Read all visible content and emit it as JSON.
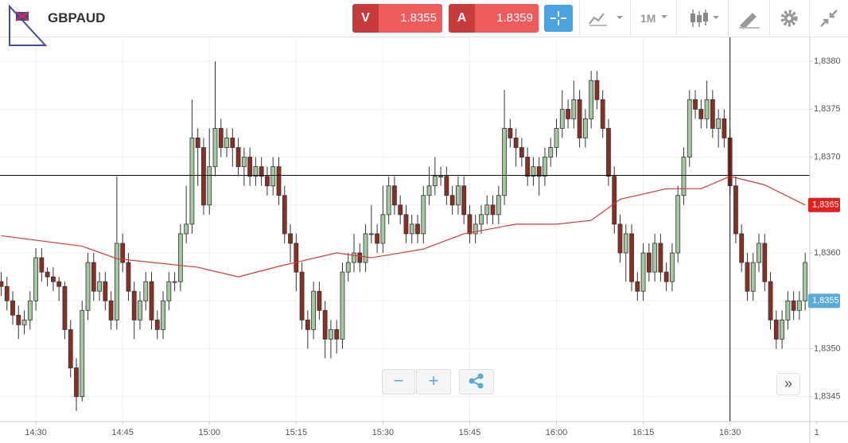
{
  "toolbar": {
    "symbol": "GBPAUD",
    "bid_label": "V",
    "bid": "1.8355",
    "ask_label": "A",
    "ask": "1.8359",
    "timeframe": "1M"
  },
  "chart_data": {
    "type": "candlestick",
    "xlim": [
      -0.2,
      139.8
    ],
    "ylim": [
      1.83424,
      1.83825
    ],
    "xticks": [
      {
        "value": 6,
        "label": "14:30"
      },
      {
        "value": 21,
        "label": "14:45"
      },
      {
        "value": 36,
        "label": "15:00"
      },
      {
        "value": 51,
        "label": "15:15"
      },
      {
        "value": 66,
        "label": "15:30"
      },
      {
        "value": 81,
        "label": "15:45"
      },
      {
        "value": 96,
        "label": "16:00"
      },
      {
        "value": 111,
        "label": "16:15"
      },
      {
        "value": 126,
        "label": "16:30"
      },
      {
        "value": 141,
        "label": "1"
      }
    ],
    "yticks": [
      {
        "value": 1.8345,
        "label": "1,8345"
      },
      {
        "value": 1.835,
        "label": "1,8350"
      },
      {
        "value": 1.8355,
        "label": "1,8355"
      },
      {
        "value": 1.836,
        "label": "1,8360"
      },
      {
        "value": 1.8365,
        "label": "1,8365"
      },
      {
        "value": 1.837,
        "label": "1,8370"
      },
      {
        "value": 1.8375,
        "label": "1,8375"
      },
      {
        "value": 1.838,
        "label": "1,8380"
      }
    ],
    "grid": true,
    "up_color": "#a4c9a0",
    "down_color": "#8e2e22",
    "open": [
      1.8357,
      1.83565,
      1.8355,
      1.83535,
      1.83525,
      1.8353,
      1.8355,
      1.83595,
      1.8358,
      1.83575,
      1.8357,
      1.83565,
      1.8352,
      1.8348,
      1.8345,
      1.8354,
      1.8359,
      1.8356,
      1.8357,
      1.8355,
      1.8353,
      1.8361,
      1.8359,
      1.8356,
      1.8353,
      1.8355,
      1.8357,
      1.8353,
      1.8352,
      1.8355,
      1.8357,
      1.8357,
      1.8362,
      1.8363,
      1.8372,
      1.8371,
      1.8365,
      1.8369,
      1.8373,
      1.8371,
      1.8372,
      1.8371,
      1.8369,
      1.837,
      1.8368,
      1.8369,
      1.8368,
      1.8367,
      1.8369,
      1.8366,
      1.8362,
      1.8361,
      1.8358,
      1.8353,
      1.8352,
      1.8356,
      1.8354,
      1.8351,
      1.8352,
      1.8351,
      1.8358,
      1.8359,
      1.836,
      1.8359,
      1.8362,
      1.8362,
      1.8361,
      1.8364,
      1.8367,
      1.8365,
      1.8364,
      1.8362,
      1.8363,
      1.8362,
      1.8366,
      1.8367,
      1.8368,
      1.8368,
      1.8366,
      1.8365,
      1.8367,
      1.8364,
      1.8362,
      1.8363,
      1.8364,
      1.8365,
      1.8364,
      1.8366,
      1.8373,
      1.8372,
      1.8371,
      1.837,
      1.8368,
      1.8369,
      1.8368,
      1.837,
      1.8371,
      1.8373,
      1.8375,
      1.8374,
      1.8376,
      1.8372,
      1.8374,
      1.8378,
      1.8376,
      1.8373,
      1.8368,
      1.8363,
      1.836,
      1.8362,
      1.8357,
      1.8356,
      1.836,
      1.8358,
      1.8361,
      1.8358,
      1.8357,
      1.836,
      1.8366,
      1.837,
      1.8376,
      1.8375,
      1.8374,
      1.8376,
      1.8373,
      1.8374,
      1.8372,
      1.8367,
      1.8362,
      1.8359,
      1.8356,
      1.8359,
      1.8361,
      1.8357,
      1.8353,
      1.8351,
      1.8353,
      1.8355,
      1.8354,
      1.8355
    ],
    "close": [
      1.83565,
      1.8355,
      1.83535,
      1.83525,
      1.8353,
      1.8355,
      1.83595,
      1.8358,
      1.83575,
      1.8357,
      1.83565,
      1.8352,
      1.8348,
      1.8345,
      1.8354,
      1.8359,
      1.8356,
      1.8357,
      1.8355,
      1.8353,
      1.8361,
      1.8359,
      1.8356,
      1.8353,
      1.8355,
      1.8357,
      1.8353,
      1.8352,
      1.8355,
      1.8357,
      1.8357,
      1.8362,
      1.8363,
      1.8372,
      1.8371,
      1.8365,
      1.8369,
      1.8373,
      1.8371,
      1.8372,
      1.8371,
      1.8369,
      1.837,
      1.8368,
      1.8369,
      1.8368,
      1.8367,
      1.8369,
      1.8366,
      1.8362,
      1.8361,
      1.8358,
      1.8353,
      1.8352,
      1.8356,
      1.8354,
      1.8351,
      1.8352,
      1.8351,
      1.8358,
      1.8359,
      1.836,
      1.8359,
      1.8362,
      1.8362,
      1.8361,
      1.8364,
      1.8367,
      1.8365,
      1.8364,
      1.8362,
      1.8363,
      1.8362,
      1.8366,
      1.8367,
      1.8368,
      1.8368,
      1.8366,
      1.8365,
      1.8367,
      1.8364,
      1.8362,
      1.8363,
      1.8364,
      1.8365,
      1.8364,
      1.8366,
      1.8373,
      1.8372,
      1.8371,
      1.837,
      1.8368,
      1.8369,
      1.8368,
      1.837,
      1.8371,
      1.8373,
      1.8375,
      1.8374,
      1.8376,
      1.8372,
      1.8374,
      1.8378,
      1.8376,
      1.8373,
      1.8368,
      1.8363,
      1.836,
      1.8362,
      1.8357,
      1.8356,
      1.836,
      1.8358,
      1.8361,
      1.8358,
      1.8357,
      1.836,
      1.8366,
      1.837,
      1.8376,
      1.8375,
      1.8374,
      1.8376,
      1.8373,
      1.8374,
      1.8372,
      1.8367,
      1.8362,
      1.8359,
      1.8356,
      1.8359,
      1.8361,
      1.8357,
      1.8353,
      1.8351,
      1.8353,
      1.8355,
      1.8354,
      1.8355,
      1.8359
    ],
    "high": [
      1.8358,
      1.83575,
      1.8356,
      1.83545,
      1.8354,
      1.8356,
      1.83605,
      1.83605,
      1.83585,
      1.83585,
      1.83575,
      1.8357,
      1.8353,
      1.8349,
      1.8355,
      1.836,
      1.836,
      1.8358,
      1.8358,
      1.8356,
      1.8368,
      1.8362,
      1.836,
      1.8357,
      1.8356,
      1.8358,
      1.8358,
      1.8354,
      1.8356,
      1.8358,
      1.8358,
      1.8363,
      1.8367,
      1.8376,
      1.8373,
      1.8372,
      1.8373,
      1.838,
      1.8374,
      1.8373,
      1.8373,
      1.8372,
      1.8371,
      1.8371,
      1.837,
      1.837,
      1.8369,
      1.837,
      1.837,
      1.8367,
      1.8363,
      1.8362,
      1.8359,
      1.8354,
      1.8357,
      1.8357,
      1.8355,
      1.8353,
      1.8353,
      1.8359,
      1.836,
      1.8362,
      1.8361,
      1.8363,
      1.8365,
      1.8363,
      1.8367,
      1.8368,
      1.8368,
      1.8366,
      1.8365,
      1.8364,
      1.8364,
      1.8367,
      1.8369,
      1.837,
      1.8369,
      1.8369,
      1.8367,
      1.8368,
      1.8368,
      1.8365,
      1.8364,
      1.8365,
      1.8366,
      1.8366,
      1.8367,
      1.8377,
      1.8374,
      1.8373,
      1.8372,
      1.8371,
      1.837,
      1.837,
      1.8371,
      1.8372,
      1.8374,
      1.8377,
      1.8376,
      1.8378,
      1.8377,
      1.8375,
      1.8379,
      1.8379,
      1.8377,
      1.8374,
      1.8369,
      1.8364,
      1.8363,
      1.8363,
      1.8358,
      1.8361,
      1.8361,
      1.8362,
      1.8362,
      1.8359,
      1.8361,
      1.8367,
      1.8371,
      1.8377,
      1.8377,
      1.8376,
      1.8378,
      1.8377,
      1.8375,
      1.8375,
      1.8373,
      1.8368,
      1.8363,
      1.836,
      1.836,
      1.8362,
      1.8362,
      1.8358,
      1.8354,
      1.8354,
      1.8356,
      1.8356,
      1.8356,
      1.836
    ],
    "low": [
      1.83555,
      1.8354,
      1.83525,
      1.8351,
      1.83515,
      1.8352,
      1.8354,
      1.8357,
      1.83565,
      1.8356,
      1.8355,
      1.8351,
      1.8347,
      1.83435,
      1.83445,
      1.8353,
      1.8355,
      1.8355,
      1.8354,
      1.8352,
      1.8352,
      1.8358,
      1.8355,
      1.8351,
      1.8352,
      1.8354,
      1.8352,
      1.8351,
      1.8351,
      1.8354,
      1.8356,
      1.8356,
      1.8361,
      1.8362,
      1.8367,
      1.8364,
      1.8364,
      1.8368,
      1.837,
      1.837,
      1.8369,
      1.8368,
      1.8367,
      1.8367,
      1.8367,
      1.8367,
      1.8366,
      1.8366,
      1.8365,
      1.8361,
      1.8359,
      1.8356,
      1.8352,
      1.835,
      1.8351,
      1.8353,
      1.8349,
      1.8349,
      1.83495,
      1.835,
      1.8357,
      1.8358,
      1.8358,
      1.8358,
      1.8361,
      1.836,
      1.836,
      1.8363,
      1.8364,
      1.8363,
      1.8361,
      1.8361,
      1.8361,
      1.8361,
      1.8365,
      1.8366,
      1.8367,
      1.8365,
      1.8364,
      1.8364,
      1.8363,
      1.8361,
      1.8361,
      1.8362,
      1.8363,
      1.8363,
      1.8363,
      1.8365,
      1.8371,
      1.8369,
      1.8369,
      1.8367,
      1.8367,
      1.8366,
      1.8367,
      1.8369,
      1.837,
      1.8372,
      1.8373,
      1.8373,
      1.8371,
      1.8371,
      1.8373,
      1.8375,
      1.8372,
      1.8367,
      1.8362,
      1.8359,
      1.8357,
      1.8356,
      1.8355,
      1.8355,
      1.8357,
      1.8357,
      1.8357,
      1.8356,
      1.8356,
      1.8359,
      1.8365,
      1.8369,
      1.8374,
      1.8373,
      1.8373,
      1.8372,
      1.8371,
      1.8371,
      1.8366,
      1.8361,
      1.8358,
      1.8355,
      1.8355,
      1.8358,
      1.8356,
      1.8352,
      1.835,
      1.835,
      1.8352,
      1.8353,
      1.8353,
      1.8354
    ],
    "moving_average": {
      "color": "#d23c32",
      "x": [
        0,
        14,
        20,
        34,
        41,
        48,
        58,
        64,
        73,
        80,
        89,
        96,
        102,
        107,
        115,
        121,
        126,
        132,
        139
      ],
      "values": [
        1.83618,
        1.83607,
        1.83594,
        1.83585,
        1.83575,
        1.83586,
        1.836,
        1.83595,
        1.83604,
        1.8362,
        1.8363,
        1.8363,
        1.83634,
        1.83656,
        1.83667,
        1.83667,
        1.8368,
        1.83671,
        1.8365
      ]
    },
    "crosshair": {
      "x": 126,
      "y": 1.83681
    },
    "price_labels": [
      {
        "value": 1.8365,
        "label": "1,8365",
        "color": "#e3201f"
      },
      {
        "value": 1.8355,
        "label": "1,8355",
        "color": "#5aaad8"
      }
    ]
  }
}
